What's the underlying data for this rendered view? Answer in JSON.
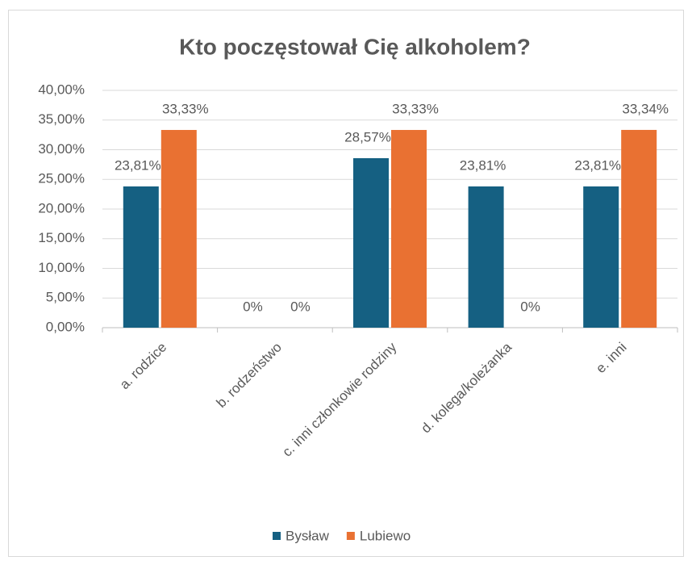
{
  "chart_data": {
    "type": "bar",
    "title": "Kto poczęstował Cię alkoholem?",
    "categories": [
      "a. rodzice",
      "b. rodzeństwo",
      "c. inni członkowie rodziny",
      "d. kolega/koleżanka",
      "e. inni"
    ],
    "series": [
      {
        "name": "Bysław",
        "color": "#156082",
        "values": [
          23.81,
          0,
          28.57,
          23.81,
          23.81
        ],
        "value_labels": [
          "23,81%",
          "0%",
          "28,57%",
          "23,81%",
          "23,81%"
        ]
      },
      {
        "name": "Lubiewo",
        "color": "#e97132",
        "values": [
          33.33,
          0,
          33.33,
          0,
          33.34
        ],
        "value_labels": [
          "33,33%",
          "0%",
          "33,33%",
          "0%",
          "33,34%"
        ]
      }
    ],
    "ylim": [
      0,
      40
    ],
    "yticks": [
      {
        "value": 0,
        "label": "0,00%"
      },
      {
        "value": 5,
        "label": "5,00%"
      },
      {
        "value": 10,
        "label": "10,00%"
      },
      {
        "value": 15,
        "label": "15,00%"
      },
      {
        "value": 20,
        "label": "20,00%"
      },
      {
        "value": 25,
        "label": "25,00%"
      },
      {
        "value": 30,
        "label": "30,00%"
      },
      {
        "value": 35,
        "label": "35,00%"
      },
      {
        "value": 40,
        "label": "40,00%"
      }
    ],
    "grid": true,
    "legend": "bottom"
  }
}
